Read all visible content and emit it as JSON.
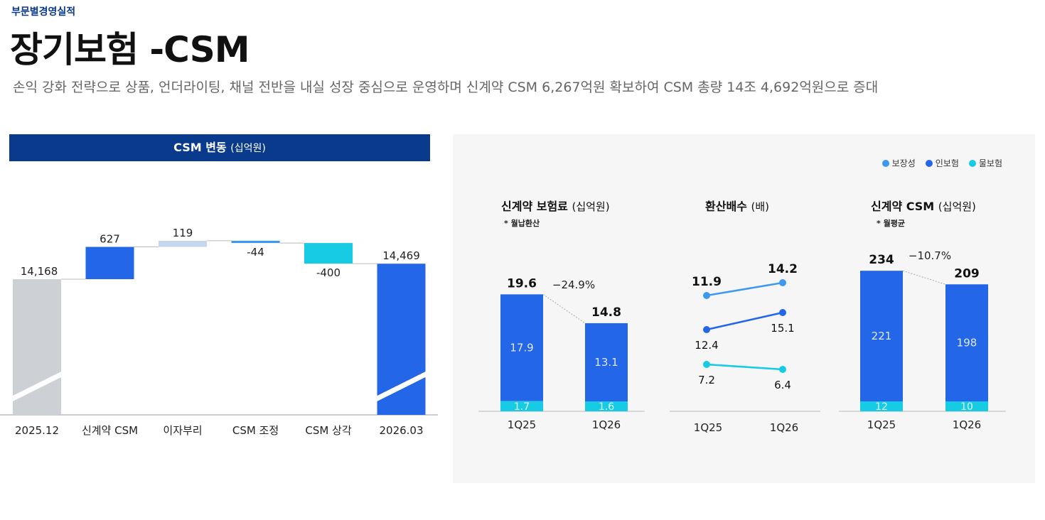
{
  "header": {
    "section": "부문별경영실적",
    "title": "장기보험 -CSM",
    "subtitle": "손익 강화 전략으로 상품, 언더라이팅, 채널 전반을 내실 성장 중심으로 운영하며 신계약 CSM 6,267억원 확보하여  CSM 총량 14조 4,692억원으로 증대"
  },
  "colors": {
    "blue": "#2466e8",
    "navy": "#0a3a8c",
    "cyan": "#16cbe3",
    "light_blue": "#3d99ef",
    "gray": "#cdd0d4",
    "pale_blue": "#c5d7ee"
  },
  "waterfall": {
    "title": "CSM 변동",
    "unit": "(십억원)",
    "chart_data": {
      "type": "bar",
      "subtype": "waterfall",
      "categories": [
        "2025.12",
        "신계약 CSM",
        "이자부리",
        "CSM 조정",
        "CSM 상각",
        "2026.03"
      ],
      "values": [
        14168,
        627,
        119,
        -44,
        -400,
        14469
      ],
      "labels": [
        "14,168",
        "627",
        "119",
        "-44",
        "-400",
        "14,469"
      ],
      "kinds": [
        "total",
        "delta",
        "delta",
        "delta",
        "delta",
        "total"
      ]
    }
  },
  "legend": [
    {
      "label": "보장성",
      "color": "#3d99ef"
    },
    {
      "label": "인보험",
      "color": "#2466e8"
    },
    {
      "label": "물보험",
      "color": "#16cbe3"
    }
  ],
  "premium": {
    "title": "신계약 보험료",
    "unit": "(십억원)",
    "note": "* 월납환산",
    "chart_data": {
      "type": "bar",
      "stacked": true,
      "categories": [
        "1Q25",
        "1Q26"
      ],
      "series": [
        {
          "name": "인보험",
          "values": [
            17.9,
            13.1
          ]
        },
        {
          "name": "물보험",
          "values": [
            1.7,
            1.6
          ]
        }
      ],
      "totals": [
        19.6,
        14.8
      ],
      "change": "-24.9%"
    }
  },
  "multiple": {
    "title": "환산배수",
    "unit": "(배)",
    "chart_data": {
      "type": "line",
      "categories": [
        "1Q25",
        "1Q26"
      ],
      "series": [
        {
          "name": "보장성",
          "values": [
            11.9,
            14.2
          ]
        },
        {
          "name": "인보험",
          "values": [
            12.4,
            15.1
          ]
        },
        {
          "name": "물보험",
          "values": [
            7.2,
            6.4
          ]
        }
      ]
    }
  },
  "newcsm": {
    "title": "신계약 CSM",
    "unit": "(십억원)",
    "note": "* 월평균",
    "chart_data": {
      "type": "bar",
      "stacked": true,
      "categories": [
        "1Q25",
        "1Q26"
      ],
      "series": [
        {
          "name": "인보험",
          "values": [
            221,
            198
          ]
        },
        {
          "name": "물보험",
          "values": [
            12,
            10
          ]
        }
      ],
      "totals": [
        234,
        209
      ],
      "change": "-10.7%"
    }
  }
}
